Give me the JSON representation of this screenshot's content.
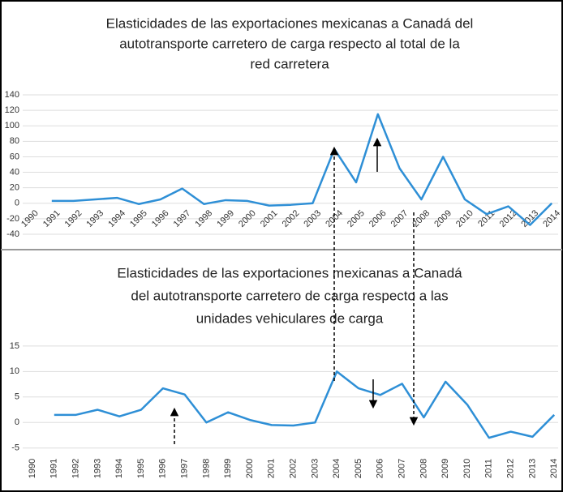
{
  "chart_data": [
    {
      "type": "line",
      "title": [
        "Elasticidades de las exportaciones mexicanas a Canadá del",
        "autotransporte carretero de carga respecto al  total de la",
        "red carretera"
      ],
      "categories": [
        "1990",
        "1991",
        "1992",
        "1993",
        "1994",
        "1995",
        "1996",
        "1997",
        "1998",
        "1999",
        "2000",
        "2001",
        "2002",
        "2003",
        "2004",
        "2005",
        "2006",
        "2007",
        "2008",
        "2009",
        "2010",
        "2011",
        "2012",
        "2013",
        "2014"
      ],
      "series": [
        {
          "color": "#2e8fd6",
          "values": [
            null,
            3,
            3,
            5,
            7,
            -1,
            5,
            19,
            -1,
            4,
            3,
            -3,
            -2,
            0,
            70,
            27,
            115,
            45,
            5,
            60,
            5,
            -14,
            -4,
            -28,
            0
          ]
        }
      ],
      "ylim": [
        -40,
        140
      ],
      "yticks": [
        -40,
        -20,
        0,
        20,
        40,
        60,
        80,
        100,
        120,
        140
      ],
      "grid": true
    },
    {
      "type": "line",
      "title": [
        "Elasticidades de las exportaciones mexicanas a Canadá",
        "del autotransporte carretero de carga respecto a las",
        "unidades vehiculares de carga"
      ],
      "categories": [
        "1990",
        "1991",
        "1992",
        "1993",
        "1994",
        "1995",
        "1996",
        "1997",
        "1998",
        "1999",
        "2000",
        "2001",
        "2002",
        "2003",
        "2004",
        "2005",
        "2006",
        "2007",
        "2008",
        "2009",
        "2010",
        "2011",
        "2012",
        "2013",
        "2014"
      ],
      "series": [
        {
          "color": "#2e8fd6",
          "values": [
            null,
            1.5,
            1.5,
            2.5,
            1.2,
            2.5,
            6.7,
            5.5,
            0,
            2,
            0.5,
            -0.5,
            -0.6,
            0,
            10,
            6.7,
            5.4,
            7.6,
            1,
            8,
            3.5,
            -3,
            -1.8,
            -2.8,
            1.5
          ]
        }
      ],
      "ylim": [
        -6,
        18
      ],
      "yticks": [
        -5,
        0,
        5,
        10,
        15
      ],
      "grid": true
    }
  ]
}
